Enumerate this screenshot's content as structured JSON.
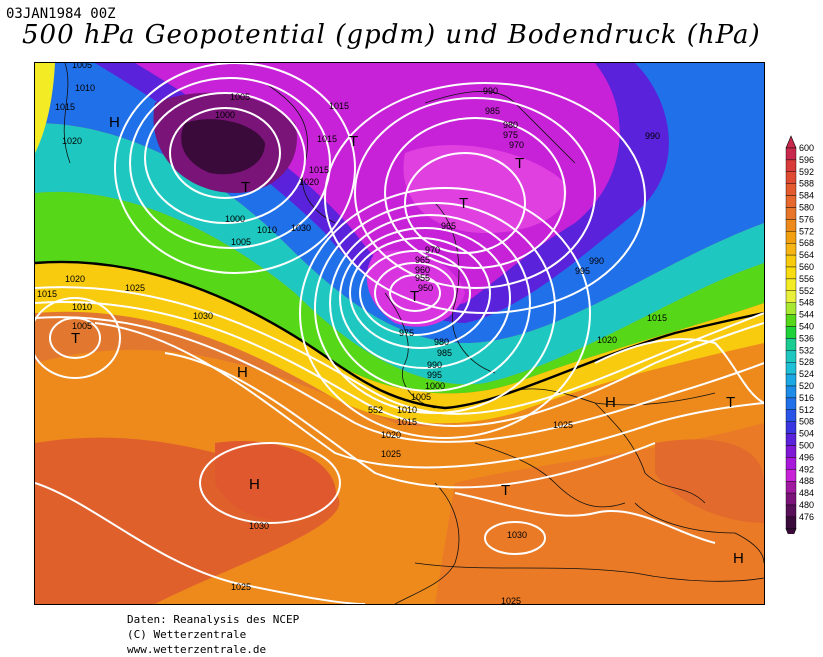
{
  "header": {
    "datetime": "03JAN1984 00Z",
    "title": "500 hPa Geopotential (gpdm) und Bodendruck (hPa)"
  },
  "credits": {
    "line1": "Daten: Reanalysis des NCEP",
    "line2": "(C) Wetterzentrale",
    "line3": "www.wetterzentrale.de"
  },
  "legend": {
    "levels": [
      "600",
      "596",
      "592",
      "588",
      "584",
      "580",
      "576",
      "572",
      "568",
      "564",
      "560",
      "556",
      "552",
      "548",
      "544",
      "540",
      "536",
      "532",
      "528",
      "524",
      "520",
      "516",
      "512",
      "508",
      "504",
      "500",
      "496",
      "492",
      "488",
      "484",
      "480",
      "476"
    ],
    "colors": [
      "#c8284c",
      "#d93a3a",
      "#df4a32",
      "#e25a2e",
      "#e6682c",
      "#e8762a",
      "#ee8a1c",
      "#f3a010",
      "#f6b512",
      "#f8cb0e",
      "#f8dc10",
      "#f3ec24",
      "#e8f03c",
      "#a8e830",
      "#56d818",
      "#1ed23a",
      "#18cc92",
      "#1ec8c0",
      "#1ec0d8",
      "#1ca8e4",
      "#1c8ce8",
      "#2070ea",
      "#2a54e8",
      "#3a36e2",
      "#5a22da",
      "#8018d8",
      "#a818da",
      "#c822d8",
      "#a01aa0",
      "#7a1478",
      "#581058",
      "#3a0a3a"
    ]
  },
  "map": {
    "centers": [
      {
        "letter": "H"
      },
      {
        "letter": "T"
      },
      {
        "letter": "T"
      },
      {
        "letter": "T"
      },
      {
        "letter": "T"
      },
      {
        "letter": "T"
      },
      {
        "letter": "T"
      },
      {
        "letter": "H"
      },
      {
        "letter": "H"
      },
      {
        "letter": "H"
      },
      {
        "letter": "T"
      },
      {
        "letter": "T"
      },
      {
        "letter": "H"
      }
    ],
    "isobar_labels": [
      "1005",
      "1010",
      "1015",
      "1020",
      "1005",
      "1000",
      "1015",
      "1015",
      "1015",
      "1020",
      "1000",
      "1005",
      "1010",
      "1030",
      "990",
      "985",
      "980",
      "975",
      "970",
      "990",
      "995",
      "965",
      "970",
      "965",
      "960",
      "955",
      "950",
      "990",
      "1015",
      "1020",
      "1025",
      "1030",
      "975",
      "980",
      "985",
      "990",
      "995",
      "1000",
      "1005",
      "1010",
      "1015",
      "1020",
      "1025",
      "1020",
      "1015",
      "1010",
      "1005",
      "552",
      "1025",
      "1030",
      "1030",
      "1025",
      "1025"
    ]
  }
}
